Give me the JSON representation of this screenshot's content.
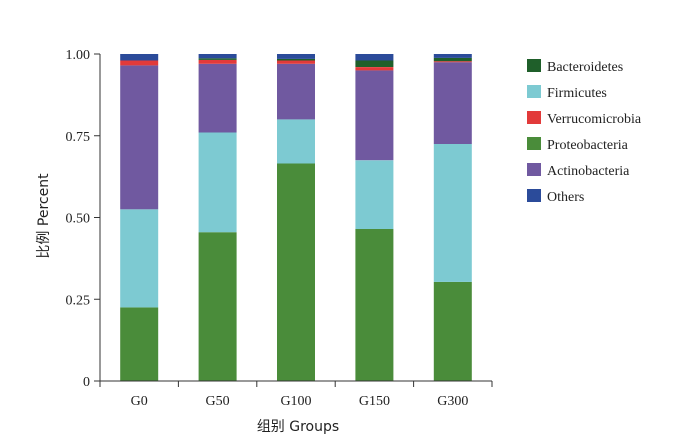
{
  "chart_data": {
    "type": "bar",
    "stacked": true,
    "title": "",
    "xlabel": "组别 Groups",
    "ylabel": "比例  Percent",
    "ylim": [
      0,
      1
    ],
    "yticks": [
      "0",
      "0.25",
      "0.50",
      "0.75",
      "1.00"
    ],
    "categories": [
      "G0",
      "G50",
      "G100",
      "G150",
      "G300"
    ],
    "series": [
      {
        "name": "Proteobacteria",
        "color": "#4a8c3a",
        "values": [
          0.225,
          0.455,
          0.665,
          0.465,
          0.303
        ]
      },
      {
        "name": "Firmicutes",
        "color": "#7dcad2",
        "values": [
          0.3,
          0.305,
          0.135,
          0.21,
          0.422
        ]
      },
      {
        "name": "Actinobacteria",
        "color": "#7059a0",
        "values": [
          0.44,
          0.21,
          0.17,
          0.275,
          0.25
        ]
      },
      {
        "name": "Verrucomicrobia",
        "color": "#e23a3a",
        "values": [
          0.015,
          0.012,
          0.01,
          0.01,
          0.003
        ]
      },
      {
        "name": "Bacteroidetes",
        "color": "#1f5f2a",
        "values": [
          0.0,
          0.005,
          0.005,
          0.02,
          0.01
        ]
      },
      {
        "name": "Others",
        "color": "#2b4b9a",
        "values": [
          0.02,
          0.013,
          0.015,
          0.02,
          0.012
        ]
      }
    ],
    "legend": {
      "position": "right",
      "order": [
        "Bacteroidetes",
        "Firmicutes",
        "Verrucomicrobia",
        "Proteobacteria",
        "Actinobacteria",
        "Others"
      ]
    },
    "grid": false
  }
}
